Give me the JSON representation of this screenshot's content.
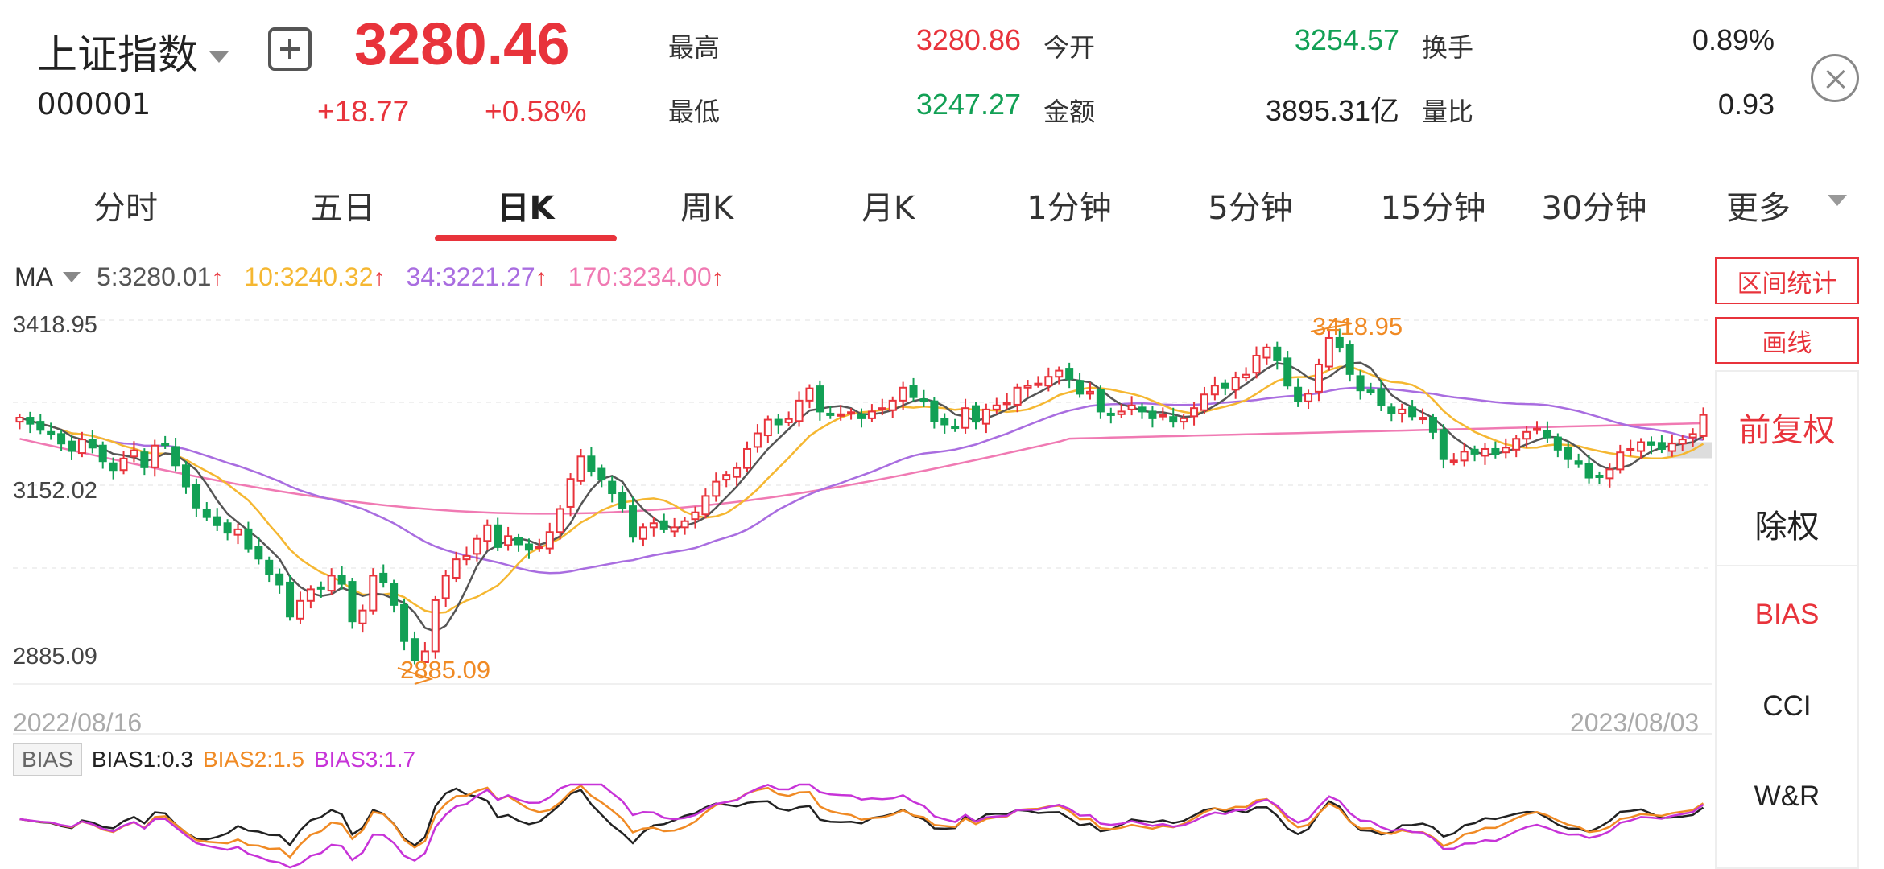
{
  "header": {
    "index_name": "上证指数",
    "index_code": "000001",
    "price": "3280.46",
    "change": "+18.77",
    "change_pct": "+0.58%",
    "stats": [
      {
        "label": "最高",
        "value": "3280.86",
        "color": "red"
      },
      {
        "label": "今开",
        "value": "3254.57",
        "color": "green"
      },
      {
        "label": "换手",
        "value": "0.89%",
        "color": "dark"
      },
      {
        "label": "最低",
        "value": "3247.27",
        "color": "green"
      },
      {
        "label": "金额",
        "value": "3895.31亿",
        "color": "dark"
      },
      {
        "label": "量比",
        "value": "0.93",
        "color": "dark"
      }
    ]
  },
  "tabs": [
    {
      "label": "分时"
    },
    {
      "label": "五日"
    },
    {
      "label": "日K",
      "active": true
    },
    {
      "label": "周K"
    },
    {
      "label": "月K"
    },
    {
      "label": "1分钟"
    },
    {
      "label": "5分钟"
    },
    {
      "label": "15分钟"
    },
    {
      "label": "30分钟"
    },
    {
      "label": "更多"
    }
  ],
  "ma_legend": {
    "label": "MA",
    "items": [
      {
        "text": "5:3280.01",
        "color": "#555555"
      },
      {
        "text": "10:3240.32",
        "color": "#f5b731"
      },
      {
        "text": "34:3221.27",
        "color": "#a96de0"
      },
      {
        "text": "170:3234.00",
        "color": "#f07ab3"
      }
    ],
    "up_arrow": "↑"
  },
  "right_panel": {
    "range_stats": "区间统计",
    "draw_line": "画线",
    "adjust_forward": "前复权",
    "ex_rights": "除权",
    "indicators": [
      "BIAS",
      "CCI",
      "W&R"
    ],
    "active_indicator": "BIAS"
  },
  "chart_data": {
    "type": "candlestick",
    "y_axis_labels": [
      "3418.95",
      "3152.02",
      "2885.09"
    ],
    "date_start": "2022/08/16",
    "date_end": "2023/08/03",
    "max_label": "3418.95",
    "min_label": "2885.09",
    "ylim": [
      2885.09,
      3418.95
    ],
    "closes": [
      3276,
      3267,
      3258,
      3252,
      3238,
      3227,
      3244,
      3232,
      3212,
      3199,
      3216,
      3228,
      3203,
      3235,
      3236,
      3206,
      3175,
      3144,
      3130,
      3118,
      3107,
      3112,
      3084,
      3069,
      3046,
      3031,
      2984,
      3007,
      3024,
      3025,
      3044,
      3032,
      2977,
      2993,
      3044,
      3035,
      3001,
      2948,
      2920,
      2933,
      3008,
      3044,
      3068,
      3073,
      3098,
      3118,
      3086,
      3102,
      3090,
      3082,
      3087,
      3108,
      3142,
      3186,
      3219,
      3198,
      3185,
      3165,
      3143,
      3101,
      3115,
      3121,
      3112,
      3115,
      3124,
      3137,
      3161,
      3182,
      3192,
      3202,
      3230,
      3253,
      3273,
      3266,
      3274,
      3301,
      3319,
      3285,
      3280,
      3281,
      3284,
      3275,
      3285,
      3290,
      3301,
      3320,
      3306,
      3300,
      3271,
      3266,
      3261,
      3290,
      3270,
      3288,
      3294,
      3298,
      3320,
      3323,
      3326,
      3336,
      3345,
      3333,
      3311,
      3314,
      3285,
      3281,
      3285,
      3294,
      3285,
      3275,
      3280,
      3270,
      3275,
      3290,
      3310,
      3323,
      3320,
      3335,
      3339,
      3367,
      3379,
      3360,
      3323,
      3300,
      3311,
      3354,
      3393,
      3380,
      3340,
      3316,
      3315,
      3294,
      3282,
      3288,
      3278,
      3276,
      3255,
      3215,
      3213,
      3226,
      3223,
      3230,
      3222,
      3232,
      3245,
      3255,
      3260,
      3247,
      3229,
      3215,
      3208,
      3188,
      3190,
      3200,
      3225,
      3230,
      3240,
      3236,
      3230,
      3238,
      3244,
      3252,
      3280
    ]
  },
  "bias_legend": {
    "tag": "BIAS",
    "items": [
      {
        "text": "BIAS1:0.3",
        "color": "#222222"
      },
      {
        "text": "BIAS2:1.5",
        "color": "#f08a24"
      },
      {
        "text": "BIAS3:1.7",
        "color": "#c733d8"
      }
    ]
  },
  "colors": {
    "up": "#e8333b",
    "down": "#12a055",
    "ma5": "#555555",
    "ma10": "#f5b731",
    "ma34": "#a96de0",
    "ma170": "#f07ab3",
    "extreme": "#f08a24"
  }
}
